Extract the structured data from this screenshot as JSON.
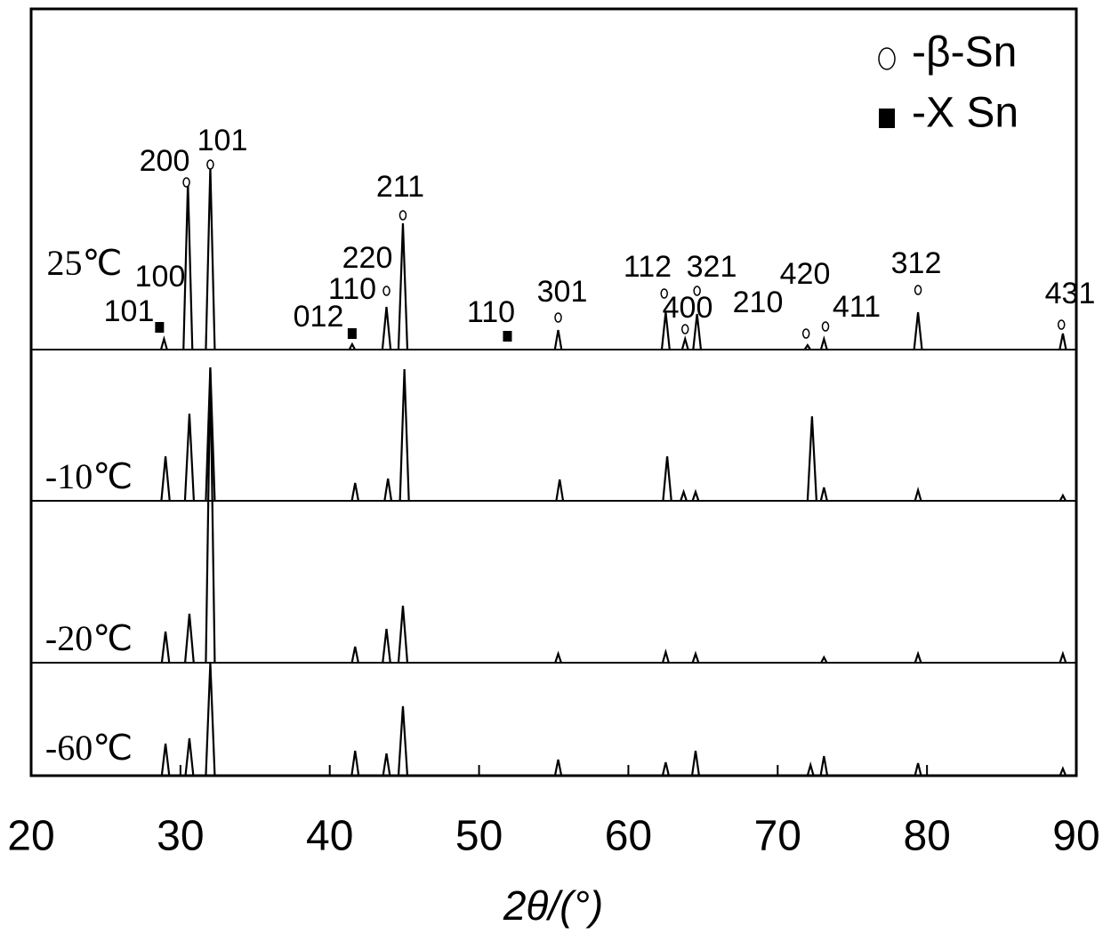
{
  "chart_data": {
    "type": "xrd",
    "xlabel": "2θ/(°)",
    "xlim": [
      20,
      90
    ],
    "xticks": [
      20,
      30,
      40,
      50,
      60,
      70,
      80,
      90
    ],
    "color": "#000000",
    "legend": [
      {
        "symbol": "circle",
        "name": "-β-Sn"
      },
      {
        "symbol": "square",
        "name": "-X Sn"
      }
    ],
    "series": [
      {
        "name": "25℃",
        "x": [
          28.9,
          30.5,
          32.0,
          41.5,
          43.8,
          44.9,
          55.3,
          62.5,
          63.8,
          64.6,
          72.0,
          73.1,
          79.4,
          89.1
        ],
        "values": [
          12,
          188,
          205,
          6,
          48,
          142,
          22,
          42,
          12,
          40,
          5,
          12,
          42,
          18
        ]
      },
      {
        "name": "-10℃",
        "x": [
          29.0,
          30.6,
          32.0,
          41.7,
          43.9,
          45.0,
          55.4,
          62.6,
          63.7,
          64.5,
          72.3,
          73.1,
          79.4,
          89.1
        ],
        "values": [
          50,
          98,
          150,
          20,
          25,
          148,
          24,
          50,
          10,
          10,
          95,
          15,
          12,
          6
        ]
      },
      {
        "name": "-20℃",
        "x": [
          29.0,
          30.6,
          32.0,
          41.7,
          43.8,
          44.9,
          55.3,
          62.5,
          64.5,
          73.1,
          79.4,
          89.1
        ],
        "values": [
          35,
          55,
          330,
          18,
          38,
          64,
          10,
          12,
          10,
          6,
          10,
          10
        ]
      },
      {
        "name": "-60℃",
        "x": [
          29.0,
          30.6,
          32.0,
          41.7,
          43.8,
          44.9,
          55.3,
          62.5,
          64.5,
          72.2,
          73.1,
          79.4,
          89.1
        ],
        "values": [
          36,
          42,
          127,
          28,
          25,
          78,
          18,
          15,
          28,
          12,
          22,
          14,
          8
        ]
      }
    ],
    "markers": [
      {
        "symbol": "square",
        "x": 28.6
      },
      {
        "symbol": "circle",
        "x": 30.4
      },
      {
        "symbol": "circle",
        "x": 32.0
      },
      {
        "symbol": "square",
        "x": 41.5
      },
      {
        "symbol": "circle",
        "x": 43.8
      },
      {
        "symbol": "circle",
        "x": 44.9
      },
      {
        "symbol": "square",
        "x": 51.9
      },
      {
        "symbol": "circle",
        "x": 55.3
      },
      {
        "symbol": "circle",
        "x": 62.4
      },
      {
        "symbol": "circle",
        "x": 63.8
      },
      {
        "symbol": "circle",
        "x": 64.6
      },
      {
        "symbol": "circle",
        "x": 71.9
      },
      {
        "symbol": "circle",
        "x": 73.2
      },
      {
        "symbol": "circle",
        "x": 79.4
      },
      {
        "symbol": "circle",
        "x": 89.0
      }
    ],
    "annotations": [
      "101",
      "100",
      "200",
      "101",
      "012",
      "110",
      "220",
      "211",
      "110",
      "301",
      "112",
      "400",
      "321",
      "210",
      "420",
      "411",
      "312",
      "431"
    ]
  }
}
